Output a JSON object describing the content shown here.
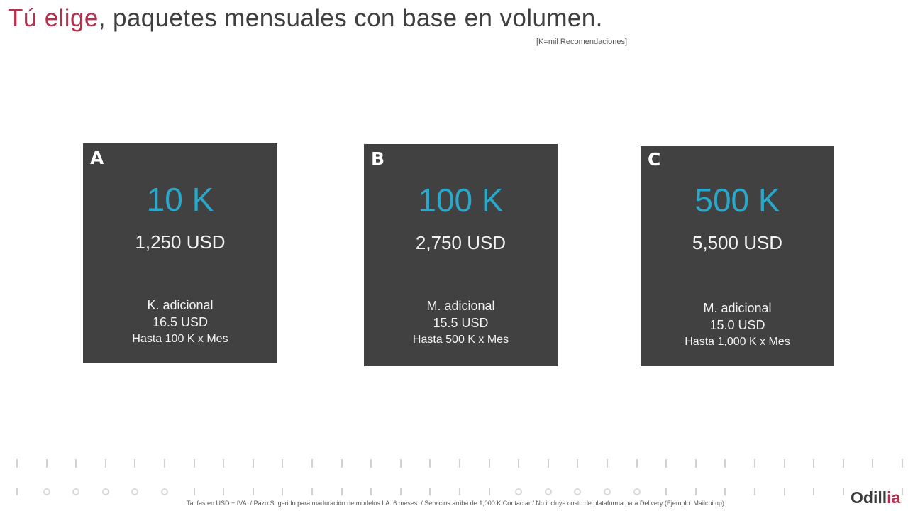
{
  "title": {
    "accent": "Tú elige",
    "rest": ", paquetes mensuales con base en volumen."
  },
  "note": "[K=mil Recomendaciones]",
  "cards": [
    {
      "letter": "A",
      "volume": "10 K",
      "price": "1,250 USD",
      "extra_label": "K. adicional",
      "extra_price": "16.5 USD",
      "limit": "Hasta 100 K x Mes"
    },
    {
      "letter": "B",
      "volume": "100 K",
      "price": "2,750 USD",
      "extra_label": "M. adicional",
      "extra_price": "15.5 USD",
      "limit": "Hasta 500 K x Mes"
    },
    {
      "letter": "C",
      "volume": "500 K",
      "price": "5,500 USD",
      "extra_label": "M. adicional",
      "extra_price": "15.0 USD",
      "limit": "Hasta 1,000 K x Mes"
    }
  ],
  "footer": "Tarifas en USD + IVA. / Pazo Sugerido para maduración de modelos I.A. 6 meses. / Servicios arriba de 1,000 K Contactar  / No incluye costo de plataforma para Delivery (Ejemplo: Mailchimp)",
  "logo": {
    "main": "Odill",
    "accent": "ia"
  },
  "colors": {
    "accent_red": "#b5304e",
    "volume_blue": "#2aa8c9",
    "card_bg": "#414141"
  }
}
